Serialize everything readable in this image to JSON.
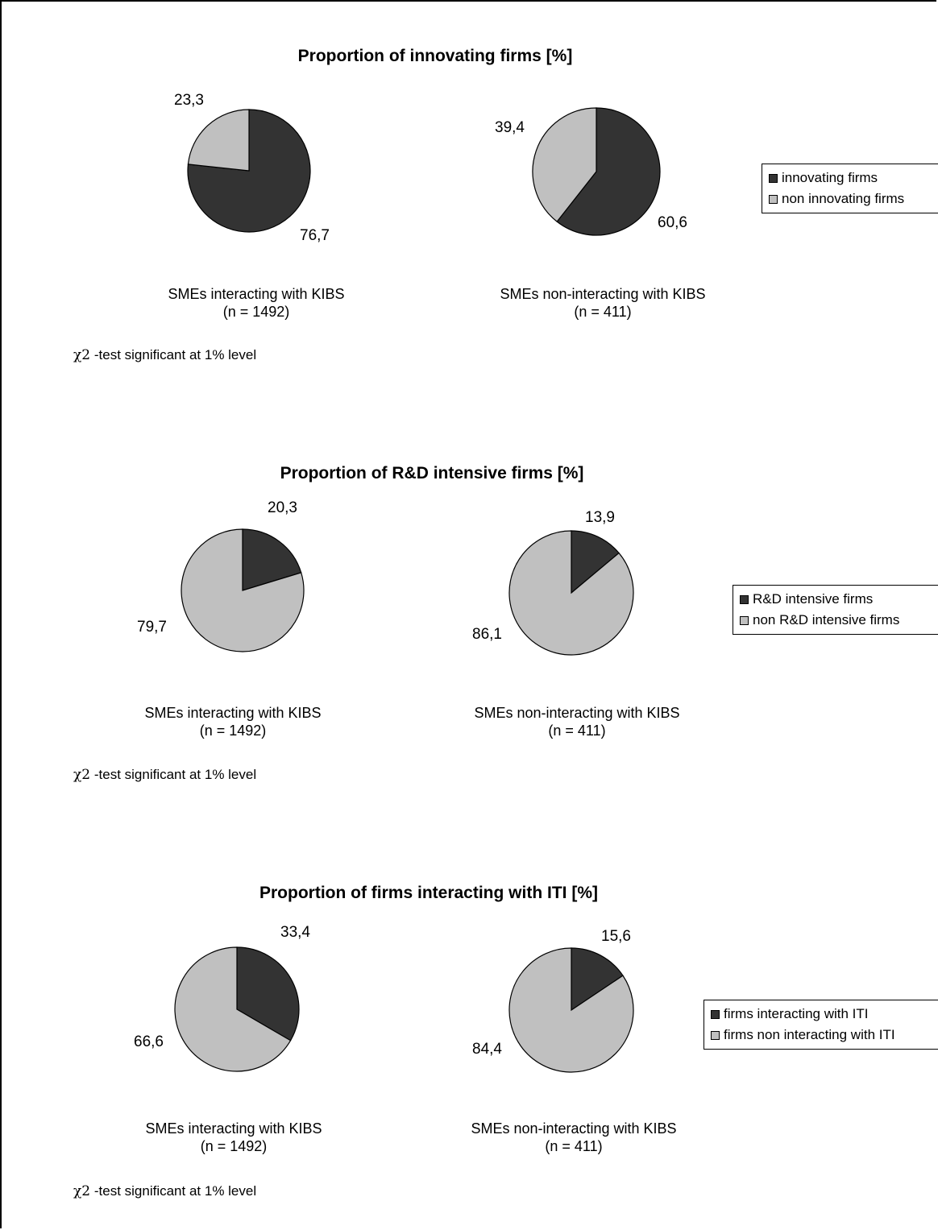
{
  "colors": {
    "dark": "#333333",
    "light": "#c0c0c0",
    "stroke": "#000000"
  },
  "chart_data": [
    {
      "type": "pie",
      "title": "Proportion of innovating firms [%]",
      "legend": [
        "innovating firms",
        "non innovating firms"
      ],
      "legend_position": "right",
      "note_symbol": "χ2",
      "note": "-test significant at 1% level",
      "pies": [
        {
          "caption_line1": "SMEs interacting with KIBS",
          "caption_line2": "(n = 1492)",
          "values": [
            76.7,
            23.3
          ],
          "labels": [
            "76,7",
            "23,3"
          ]
        },
        {
          "caption_line1": "SMEs non-interacting with KIBS",
          "caption_line2": "(n = 411)",
          "values": [
            60.6,
            39.4
          ],
          "labels": [
            "60,6",
            "39,4"
          ]
        }
      ]
    },
    {
      "type": "pie",
      "title": "Proportion of R&D intensive firms [%]",
      "legend": [
        "R&D intensive firms",
        "non R&D intensive firms"
      ],
      "legend_position": "right",
      "note_symbol": "χ2",
      "note": "-test significant at 1% level",
      "pies": [
        {
          "caption_line1": "SMEs interacting with KIBS",
          "caption_line2": "(n = 1492)",
          "values": [
            20.3,
            79.7
          ],
          "labels": [
            "20,3",
            "79,7"
          ]
        },
        {
          "caption_line1": "SMEs non-interacting with KIBS",
          "caption_line2": "(n = 411)",
          "values": [
            13.9,
            86.1
          ],
          "labels": [
            "13,9",
            "86,1"
          ]
        }
      ]
    },
    {
      "type": "pie",
      "title": "Proportion of firms interacting with ITI [%]",
      "legend": [
        "firms interacting with ITI",
        "firms non interacting with ITI"
      ],
      "legend_position": "right",
      "note_symbol": "χ2",
      "note": "-test significant at 1% level",
      "pies": [
        {
          "caption_line1": "SMEs interacting with KIBS",
          "caption_line2": "(n = 1492)",
          "values": [
            33.4,
            66.6
          ],
          "labels": [
            "33,4",
            "66,6"
          ]
        },
        {
          "caption_line1": "SMEs non-interacting with KIBS",
          "caption_line2": "(n = 411)",
          "values": [
            15.6,
            84.4
          ],
          "labels": [
            "15,6",
            "84,4"
          ]
        }
      ]
    }
  ]
}
